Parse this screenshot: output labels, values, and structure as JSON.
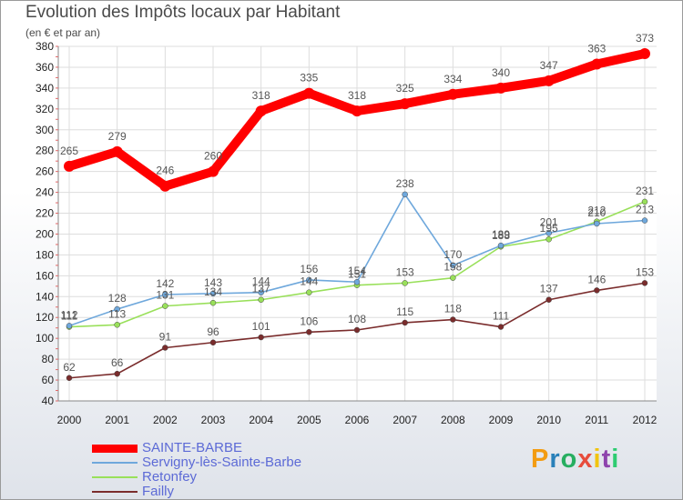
{
  "title": "Evolution des Impôts locaux par Habitant",
  "subtitle": "(en € et par an)",
  "brand": {
    "letters": [
      "P",
      "r",
      "o",
      "x",
      "i",
      "t",
      "i"
    ],
    "colors": [
      "#f39c12",
      "#2980b9",
      "#27ae60",
      "#e74c3c",
      "#f1c40f",
      "#8e44ad",
      "#2ecc71"
    ]
  },
  "chart_data": {
    "type": "line",
    "x": [
      "2000",
      "2001",
      "2002",
      "2003",
      "2004",
      "2005",
      "2006",
      "2007",
      "2008",
      "2009",
      "2010",
      "2011",
      "2012"
    ],
    "ylim": [
      40,
      380
    ],
    "yticks": [
      "40",
      "60",
      "80",
      "100",
      "120",
      "140",
      "160",
      "180",
      "200",
      "220",
      "240",
      "260",
      "280",
      "300",
      "320",
      "340",
      "360",
      "380"
    ],
    "series": [
      {
        "name": "SAINTE-BARBE",
        "color": "#ff0000",
        "values": [
          265,
          279,
          246,
          260,
          318,
          335,
          318,
          325,
          334,
          340,
          347,
          363,
          373
        ],
        "labels": [
          "265",
          "279",
          "246",
          "260",
          "318",
          "335",
          "318",
          "325",
          "334",
          "340",
          "347",
          "363",
          "373"
        ]
      },
      {
        "name": "Servigny-lès-Sainte-Barbe",
        "color": "#6fa8dc",
        "values": [
          112,
          128,
          142,
          143,
          144,
          156,
          154,
          238,
          170,
          189,
          201,
          210,
          213
        ],
        "labels": [
          "112",
          "128",
          "142",
          "143",
          "144",
          "156",
          "154",
          "238",
          "170",
          "189",
          "201",
          "210",
          "213"
        ]
      },
      {
        "name": "Retonfey",
        "color": "#99e05a",
        "values": [
          111,
          113,
          131,
          134,
          137,
          144,
          151,
          153,
          158,
          188,
          195,
          212,
          231
        ],
        "labels": [
          "111",
          "113",
          "131",
          "134",
          "137",
          "144",
          "151",
          "153",
          "158",
          "188",
          "195",
          "212",
          "231"
        ]
      },
      {
        "name": "Failly",
        "color": "#7a2c2c",
        "values": [
          62,
          66,
          91,
          96,
          101,
          106,
          108,
          115,
          118,
          111,
          137,
          146,
          153
        ],
        "labels": [
          "62",
          "66",
          "91",
          "96",
          "101",
          "106",
          "108",
          "115",
          "118",
          "111",
          "137",
          "146",
          "153"
        ]
      }
    ]
  }
}
